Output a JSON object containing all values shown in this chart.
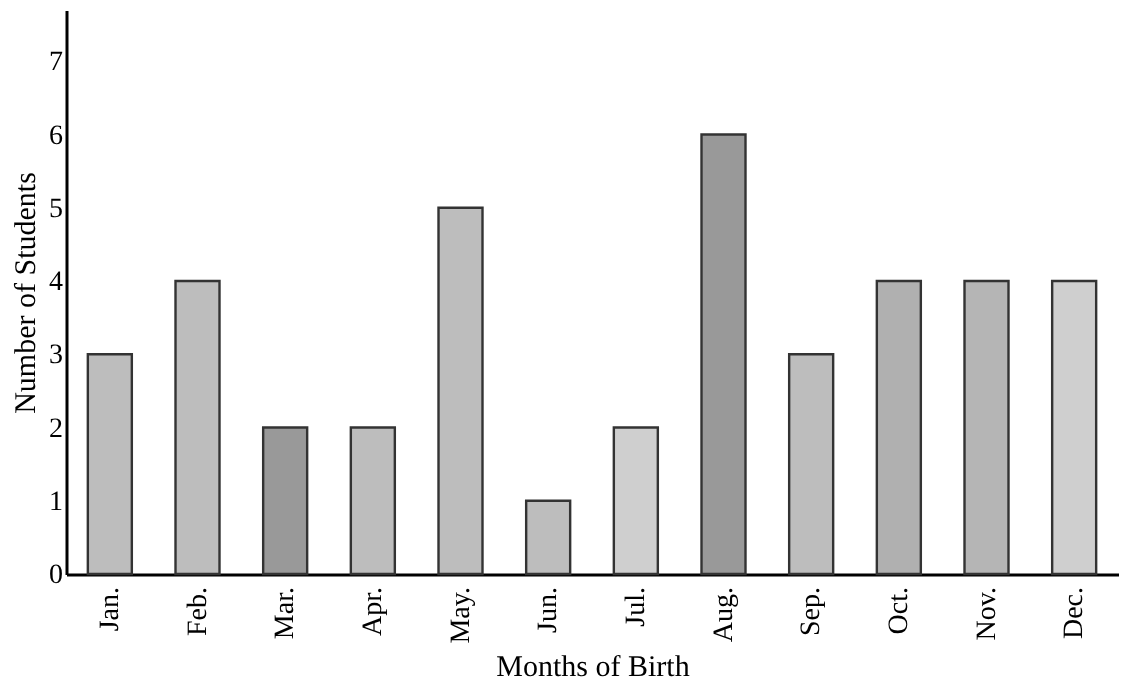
{
  "chart_data": {
    "type": "bar",
    "xlabel": "Months of Birth",
    "ylabel": "Number of Students",
    "categories": [
      "Jan.",
      "Feb.",
      "Mar.",
      "Apr.",
      "May.",
      "Jun.",
      "Jul.",
      "Aug.",
      "Sep.",
      "Oct.",
      "Nov.",
      "Dec."
    ],
    "values": [
      3,
      4,
      2,
      2,
      5,
      1,
      2,
      6,
      3,
      4,
      4,
      4
    ],
    "colors": [
      "#bdbdbd",
      "#bdbdbd",
      "#999999",
      "#bdbdbd",
      "#bdbdbd",
      "#bdbdbd",
      "#cfcfcf",
      "#999999",
      "#bdbdbd",
      "#b0b0b0",
      "#b5b5b5",
      "#cfcfcf"
    ],
    "ylim": [
      0,
      7.7
    ],
    "yticks": [
      0,
      1,
      2,
      3,
      4,
      5,
      6,
      7
    ],
    "grid": false
  }
}
